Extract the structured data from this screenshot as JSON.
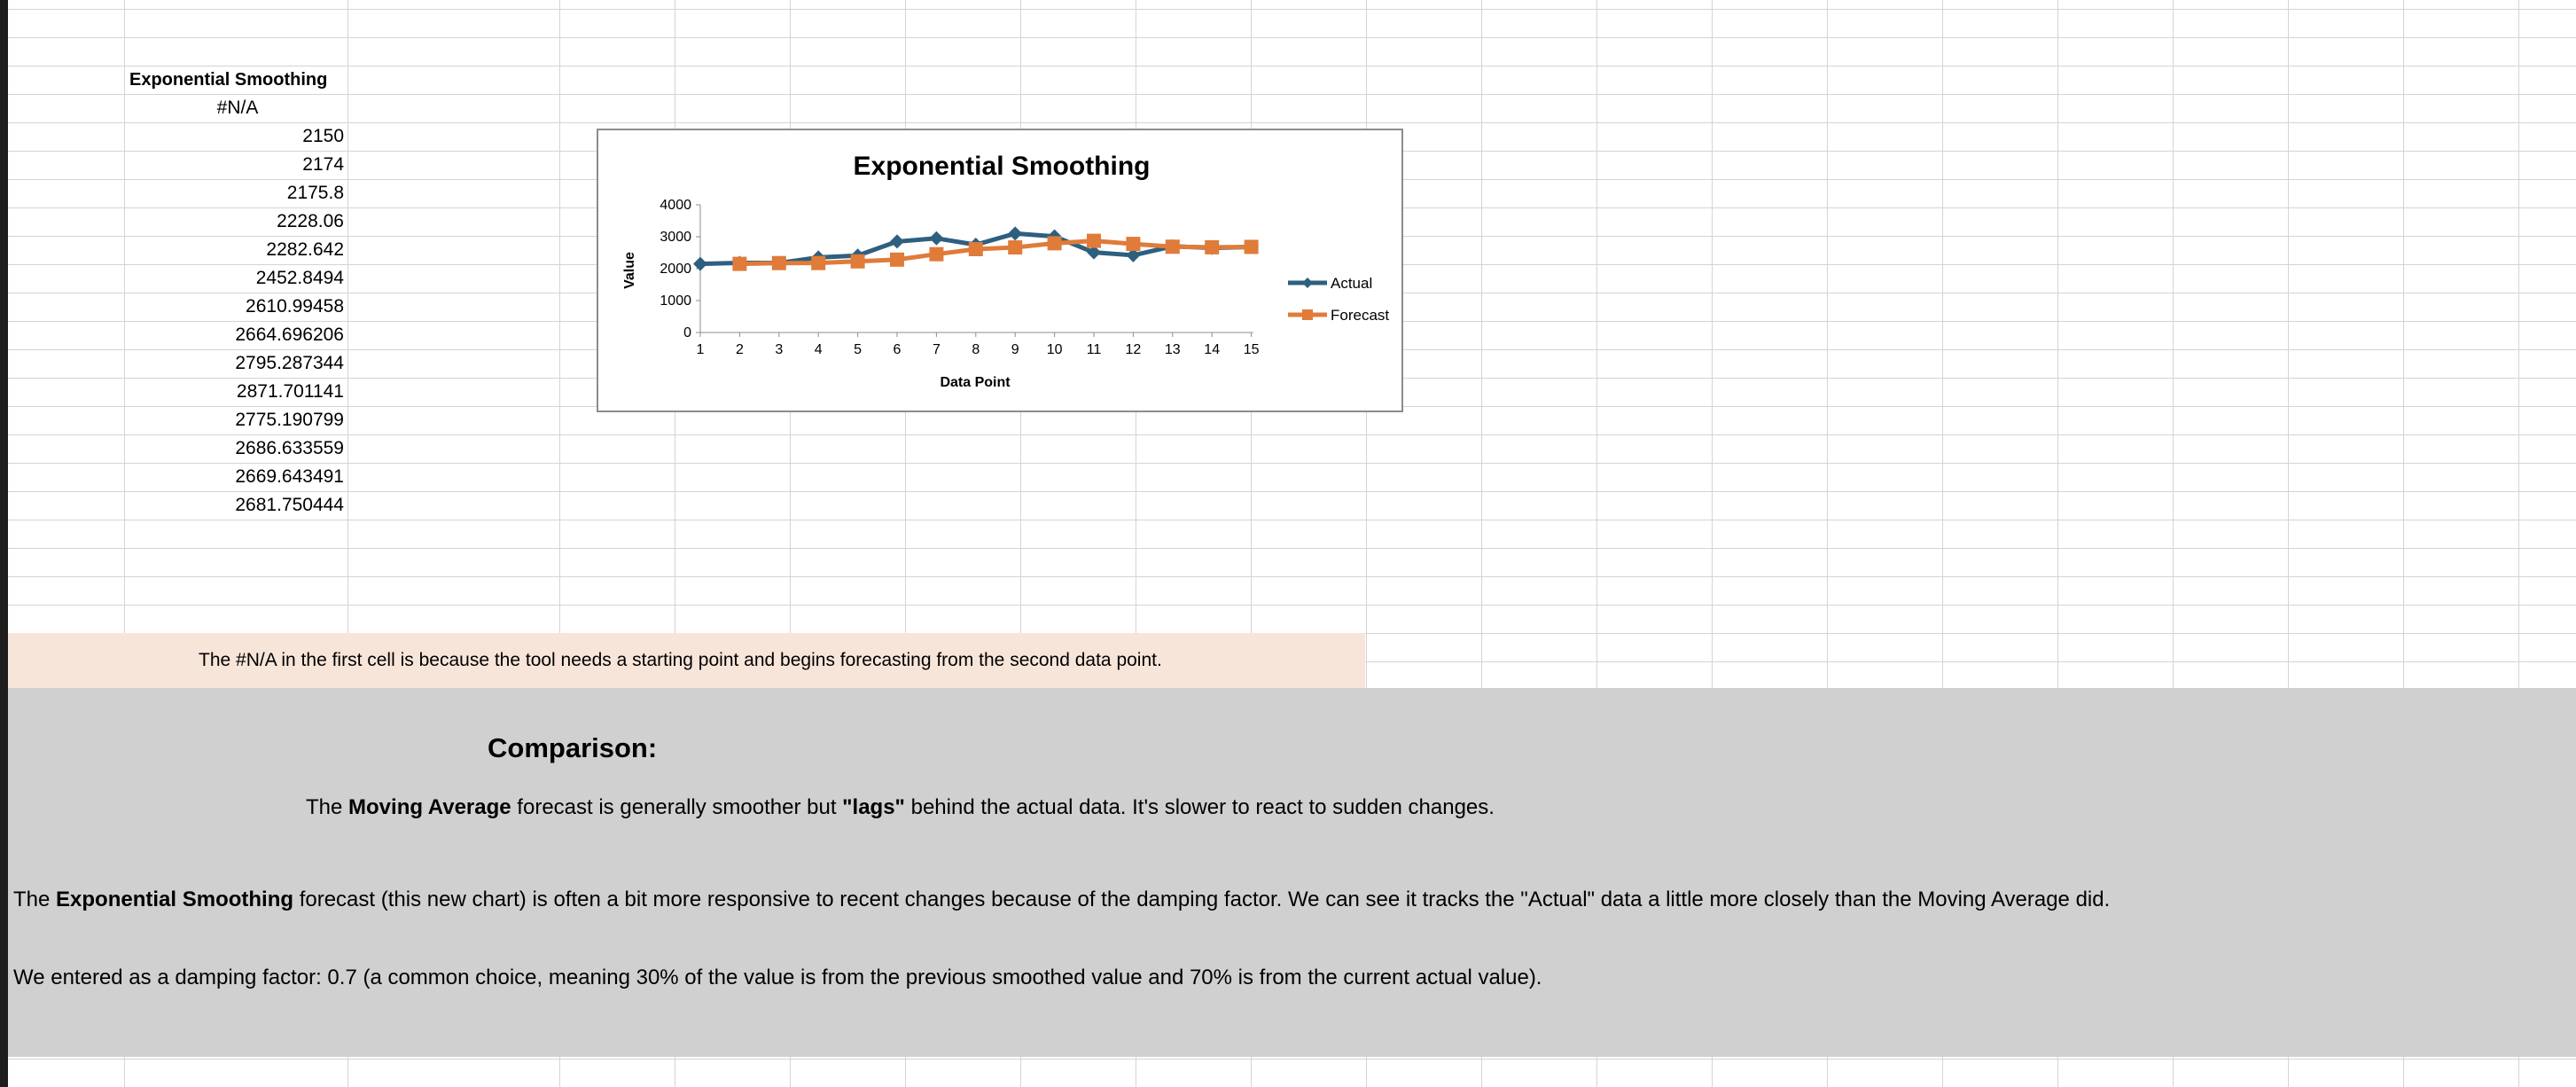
{
  "sheet": {
    "column_header": "Exponential Smoothing",
    "first_value": "#N/A",
    "values": [
      "2150",
      "2174",
      "2175.8",
      "2228.06",
      "2282.642",
      "2452.8494",
      "2610.99458",
      "2664.696206",
      "2795.287344",
      "2871.701141",
      "2775.190799",
      "2686.633559",
      "2669.643491",
      "2681.750444"
    ]
  },
  "note": "The #N/A in the first cell is because the tool needs a starting point and begins forecasting from the second data point.",
  "comparison": {
    "title": "Comparison:",
    "p1_a": "The ",
    "p1_bold1": "Moving Average",
    "p1_b": " forecast  is generally smoother but ",
    "p1_bold2": "\"lags\"",
    "p1_c": " behind the actual data. It's slower to react to sudden changes.",
    "p2_a": "The ",
    "p2_bold": "Exponential Smoothing",
    "p2_b": " forecast (this new chart) is often a bit more responsive to recent changes because of the damping factor. We can see it tracks the \"Actual\" data a little more closely than the Moving Average did.",
    "p3": "We entered as a damping factor: 0.7 (a common choice, meaning 30% of the value is from the previous smoothed value and 70% is from the current actual value)."
  },
  "colors": {
    "actual": "#2e5f7f",
    "forecast": "#e07b39",
    "note_background": "#f8e5da",
    "comparison_background": "#d0d0d0"
  },
  "chart_data": {
    "type": "line",
    "title": "Exponential Smoothing",
    "xlabel": "Data Point",
    "ylabel": "Value",
    "categories": [
      "1",
      "2",
      "3",
      "4",
      "5",
      "6",
      "7",
      "8",
      "9",
      "10",
      "11",
      "12",
      "13",
      "14",
      "15"
    ],
    "yticks": [
      "0",
      "1000",
      "2000",
      "3000",
      "4000"
    ],
    "ylim": [
      0,
      4000
    ],
    "legend_position": "right",
    "grid": false,
    "series": [
      {
        "name": "Actual",
        "marker": "diamond",
        "values": [
          2150,
          2180,
          2180,
          2350,
          2410,
          2850,
          2950,
          2750,
          3100,
          3010,
          2510,
          2420,
          2700,
          2650,
          2680
        ]
      },
      {
        "name": "Forecast",
        "marker": "square",
        "values": [
          null,
          2150,
          2174,
          2175.8,
          2228.06,
          2282.642,
          2452.8494,
          2610.99458,
          2664.696206,
          2795.287344,
          2871.701141,
          2775.190799,
          2686.633559,
          2669.643491,
          2681.750444
        ]
      }
    ]
  }
}
